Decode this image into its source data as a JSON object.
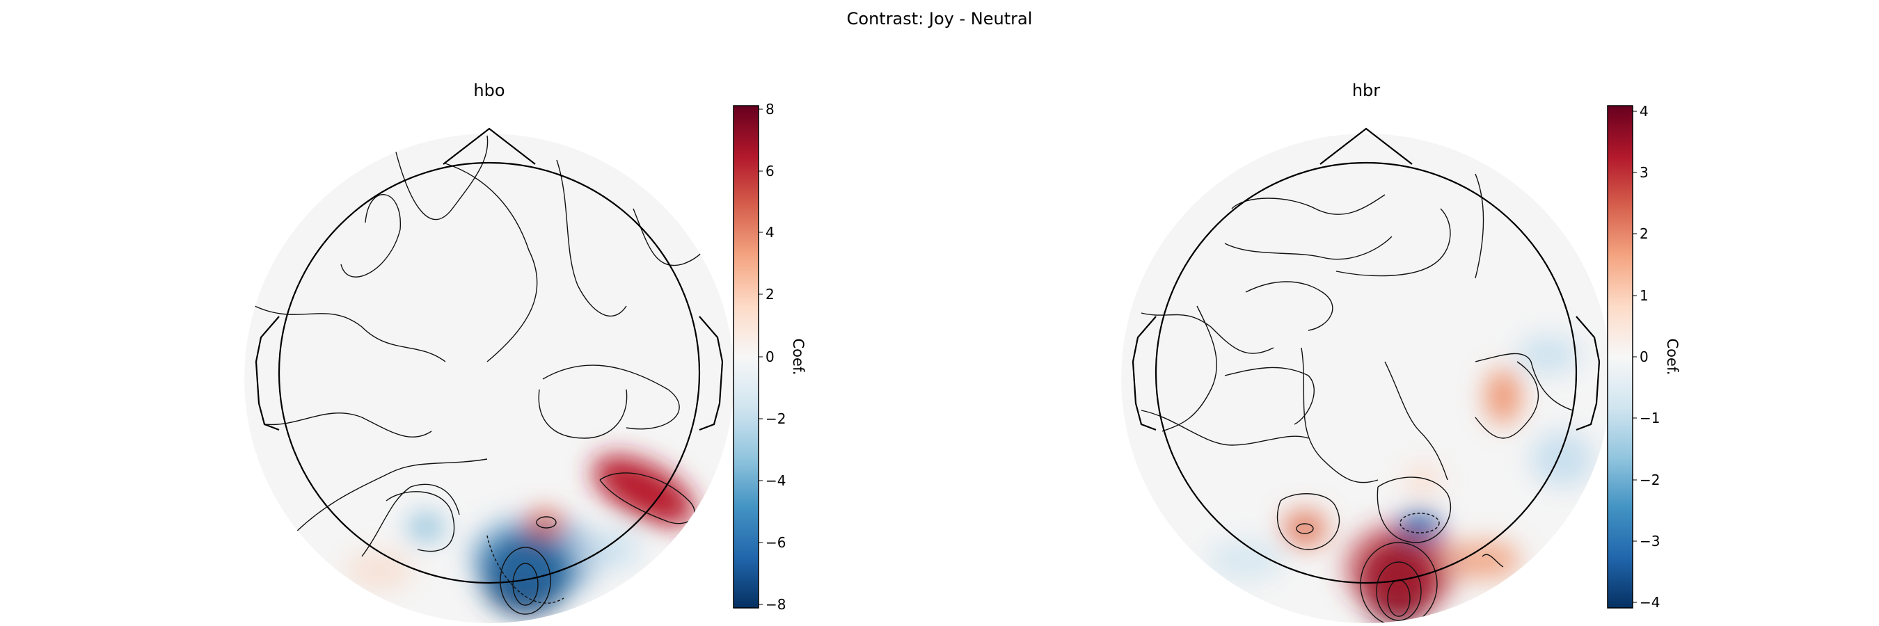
{
  "suptitle": "Contrast: Joy - Neutral",
  "colormap": [
    "#053061",
    "#2166ac",
    "#4393c3",
    "#92c5de",
    "#d1e5f0",
    "#f7f7f7",
    "#fddbc7",
    "#f4a582",
    "#d6604d",
    "#b2182b",
    "#67001f"
  ],
  "chart_data": [
    {
      "type": "heatmap",
      "title": "hbo",
      "colorbar_label": "Coef.",
      "vlim": [
        -8.2,
        8.2
      ],
      "colorbar_ticks": [
        "8",
        "6",
        "4",
        "2",
        "0",
        "−2",
        "−4",
        "−6",
        "−8"
      ],
      "colorbar_tick_values": [
        8,
        6,
        4,
        2,
        0,
        -2,
        -4,
        -6,
        -8
      ],
      "extrema": [
        {
          "region": "occipital-midline",
          "value": -8.2
        },
        {
          "region": "right-parieto-occipital",
          "value": 6.5
        },
        {
          "region": "right-occipital",
          "value": 4.2
        },
        {
          "region": "left-occipital",
          "value": -2.5
        }
      ]
    },
    {
      "type": "heatmap",
      "title": "hbr",
      "colorbar_label": "Coef.",
      "vlim": [
        -4.1,
        4.1
      ],
      "colorbar_ticks": [
        "4",
        "3",
        "2",
        "1",
        "0",
        "−1",
        "−2",
        "−3",
        "−4"
      ],
      "colorbar_tick_values": [
        4,
        3,
        2,
        1,
        0,
        -1,
        -2,
        -3,
        -4
      ],
      "extrema": [
        {
          "region": "occipital-midline",
          "value": 4.1
        },
        {
          "region": "right-occipital",
          "value": -3.6
        },
        {
          "region": "left-occipital",
          "value": 2.2
        },
        {
          "region": "right-temporal",
          "value": 2.0
        },
        {
          "region": "right-temporo-parietal",
          "value": -1.0
        }
      ]
    }
  ]
}
